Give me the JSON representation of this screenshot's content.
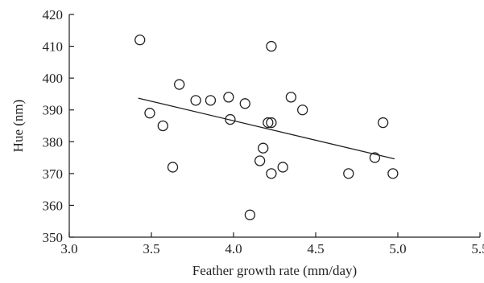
{
  "chart_data": {
    "type": "scatter",
    "title": "",
    "xlabel": "Feather growth rate (mm/day)",
    "ylabel": "Hue (nm)",
    "xlim": [
      3.0,
      5.5
    ],
    "ylim": [
      350,
      420
    ],
    "xticks": [
      3.0,
      3.5,
      4.0,
      4.5,
      5.0,
      5.5
    ],
    "xtick_labels": [
      "3.0",
      "3.5",
      "4.0",
      "4.5",
      "5.0",
      "5.5"
    ],
    "yticks": [
      350,
      360,
      370,
      380,
      390,
      400,
      410,
      420
    ],
    "ytick_labels": [
      "350",
      "360",
      "370",
      "380",
      "390",
      "400",
      "410",
      "420"
    ],
    "grid": false,
    "legend": "none",
    "marker": "open-circle",
    "color": "#231f20",
    "points": [
      {
        "x": 3.43,
        "y": 412
      },
      {
        "x": 3.49,
        "y": 389
      },
      {
        "x": 3.57,
        "y": 385
      },
      {
        "x": 3.63,
        "y": 372
      },
      {
        "x": 3.67,
        "y": 398
      },
      {
        "x": 3.77,
        "y": 393
      },
      {
        "x": 3.86,
        "y": 393
      },
      {
        "x": 3.97,
        "y": 394
      },
      {
        "x": 3.98,
        "y": 387
      },
      {
        "x": 4.07,
        "y": 392
      },
      {
        "x": 4.1,
        "y": 357
      },
      {
        "x": 4.16,
        "y": 374
      },
      {
        "x": 4.18,
        "y": 378
      },
      {
        "x": 4.21,
        "y": 386
      },
      {
        "x": 4.23,
        "y": 386
      },
      {
        "x": 4.23,
        "y": 370
      },
      {
        "x": 4.23,
        "y": 410
      },
      {
        "x": 4.3,
        "y": 372
      },
      {
        "x": 4.35,
        "y": 394
      },
      {
        "x": 4.42,
        "y": 390
      },
      {
        "x": 4.7,
        "y": 370
      },
      {
        "x": 4.86,
        "y": 375
      },
      {
        "x": 4.91,
        "y": 386
      },
      {
        "x": 4.97,
        "y": 370
      }
    ],
    "trendline": {
      "x": [
        3.42,
        4.98
      ],
      "y": [
        393.7,
        374.6
      ]
    }
  }
}
